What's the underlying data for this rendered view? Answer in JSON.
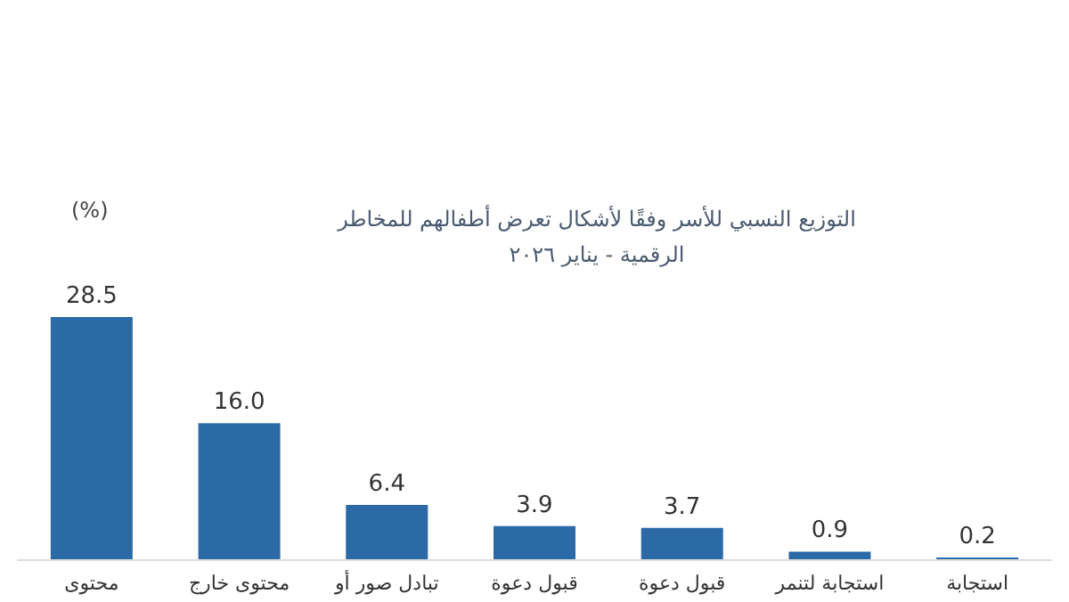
{
  "chart_data": {
    "type": "bar",
    "title": "التوزيع النسبي للأسر وفقًا لأشكال تعرض أطفالهم للمخاطر\nالرقمية - يناير ٢٠٢٦",
    "ylabel": "(%)",
    "categories": [
      "محتوى",
      "محتوى خارج",
      "تبادل صور أو",
      "قبول دعوة",
      "قبول دعوة",
      "استجابة لتنمر",
      "استجابة"
    ],
    "values": [
      28.5,
      16.0,
      6.4,
      3.9,
      3.7,
      0.9,
      0.2
    ],
    "value_labels": [
      "28.5",
      "16.0",
      "6.4",
      "3.9",
      "3.7",
      "0.9",
      "0.2"
    ],
    "color": "#2c6aa7"
  }
}
